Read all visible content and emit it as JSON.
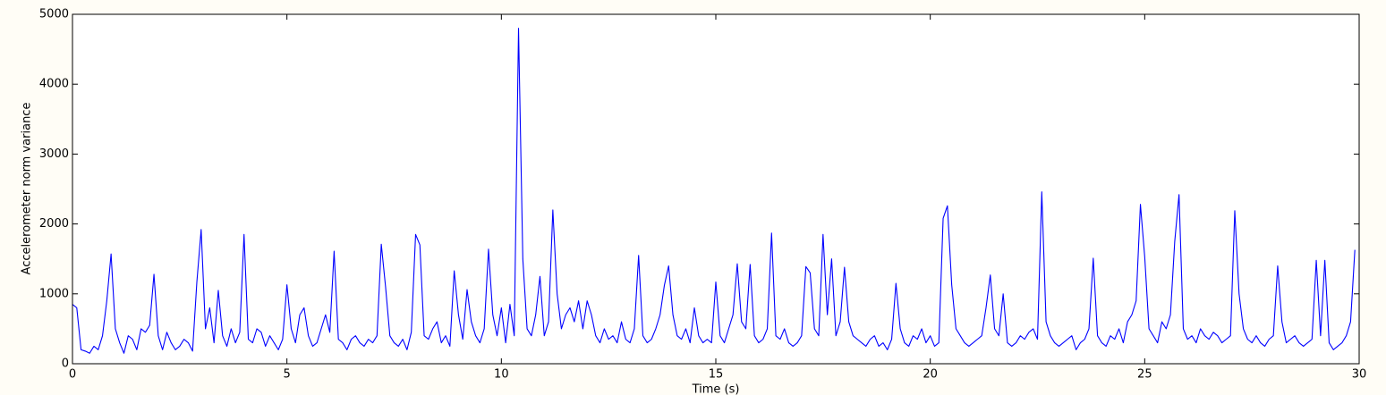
{
  "chart_data": {
    "type": "line",
    "xlabel": "Time (s)",
    "ylabel": "Accelerometer norm variance",
    "color": "#0000ff",
    "xlim": [
      0,
      30
    ],
    "xticks": [
      0,
      5,
      10,
      15,
      20,
      25,
      30
    ],
    "ylim": [
      0,
      5000
    ],
    "yticks": [
      0,
      1000,
      2000,
      3000,
      4000,
      5000
    ],
    "x": [
      0,
      0.1,
      0.2,
      0.3,
      0.4,
      0.5,
      0.6,
      0.7,
      0.8,
      0.9,
      1,
      1.1,
      1.2,
      1.3,
      1.4,
      1.5,
      1.6,
      1.7,
      1.8,
      1.9,
      2,
      2.1,
      2.2,
      2.3,
      2.4,
      2.5,
      2.6,
      2.7,
      2.8,
      2.9,
      3,
      3.1,
      3.2,
      3.3,
      3.4,
      3.5,
      3.6,
      3.7,
      3.8,
      3.9,
      4,
      4.1,
      4.2,
      4.3,
      4.4,
      4.5,
      4.6,
      4.7,
      4.8,
      4.9,
      5,
      5.1,
      5.2,
      5.3,
      5.4,
      5.5,
      5.6,
      5.7,
      5.8,
      5.9,
      6,
      6.1,
      6.2,
      6.3,
      6.4,
      6.5,
      6.6,
      6.7,
      6.8,
      6.9,
      7,
      7.1,
      7.2,
      7.3,
      7.4,
      7.5,
      7.6,
      7.7,
      7.8,
      7.9,
      8,
      8.1,
      8.2,
      8.3,
      8.4,
      8.5,
      8.6,
      8.7,
      8.8,
      8.9,
      9,
      9.1,
      9.2,
      9.3,
      9.4,
      9.5,
      9.6,
      9.7,
      9.8,
      9.9,
      10,
      10.1,
      10.2,
      10.3,
      10.4,
      10.5,
      10.6,
      10.7,
      10.8,
      10.9,
      11,
      11.1,
      11.2,
      11.3,
      11.4,
      11.5,
      11.6,
      11.7,
      11.8,
      11.9,
      12,
      12.1,
      12.2,
      12.3,
      12.4,
      12.5,
      12.6,
      12.7,
      12.8,
      12.9,
      13,
      13.1,
      13.2,
      13.3,
      13.4,
      13.5,
      13.6,
      13.7,
      13.8,
      13.9,
      14,
      14.1,
      14.2,
      14.3,
      14.4,
      14.5,
      14.6,
      14.7,
      14.8,
      14.9,
      15,
      15.1,
      15.2,
      15.3,
      15.4,
      15.5,
      15.6,
      15.7,
      15.8,
      15.9,
      16,
      16.1,
      16.2,
      16.3,
      16.4,
      16.5,
      16.6,
      16.7,
      16.8,
      16.9,
      17,
      17.1,
      17.2,
      17.3,
      17.4,
      17.5,
      17.6,
      17.7,
      17.8,
      17.9,
      18,
      18.1,
      18.2,
      18.3,
      18.4,
      18.5,
      18.6,
      18.7,
      18.8,
      18.9,
      19,
      19.1,
      19.2,
      19.3,
      19.4,
      19.5,
      19.6,
      19.7,
      19.8,
      19.9,
      20,
      20.1,
      20.2,
      20.3,
      20.4,
      20.5,
      20.6,
      20.7,
      20.8,
      20.9,
      21,
      21.1,
      21.2,
      21.3,
      21.4,
      21.5,
      21.6,
      21.7,
      21.8,
      21.9,
      22,
      22.1,
      22.2,
      22.3,
      22.4,
      22.5,
      22.6,
      22.7,
      22.8,
      22.9,
      23,
      23.1,
      23.2,
      23.3,
      23.4,
      23.5,
      23.6,
      23.7,
      23.8,
      23.9,
      24,
      24.1,
      24.2,
      24.3,
      24.4,
      24.5,
      24.6,
      24.7,
      24.8,
      24.9,
      25,
      25.1,
      25.2,
      25.3,
      25.4,
      25.5,
      25.6,
      25.7,
      25.8,
      25.9,
      26,
      26.1,
      26.2,
      26.3,
      26.4,
      26.5,
      26.6,
      26.7,
      26.8,
      26.9,
      27,
      27.1,
      27.2,
      27.3,
      27.4,
      27.5,
      27.6,
      27.7,
      27.8,
      27.9,
      28,
      28.1,
      28.2,
      28.3,
      28.4,
      28.5,
      28.6,
      28.7,
      28.8,
      28.9,
      29,
      29.1,
      29.2,
      29.3,
      29.4,
      29.5,
      29.6,
      29.7,
      29.8,
      29.9
    ],
    "values": [
      850,
      800,
      200,
      180,
      150,
      250,
      200,
      400,
      900,
      1570,
      500,
      300,
      150,
      400,
      350,
      200,
      500,
      450,
      550,
      1280,
      400,
      200,
      450,
      300,
      200,
      250,
      350,
      300,
      180,
      1170,
      1920,
      500,
      800,
      300,
      1050,
      400,
      250,
      500,
      300,
      450,
      1850,
      350,
      300,
      500,
      450,
      250,
      400,
      300,
      200,
      350,
      1130,
      500,
      300,
      700,
      800,
      400,
      250,
      300,
      500,
      700,
      450,
      1610,
      350,
      300,
      200,
      350,
      400,
      300,
      250,
      350,
      300,
      400,
      1710,
      1100,
      400,
      300,
      250,
      350,
      200,
      450,
      1850,
      1700,
      400,
      350,
      500,
      600,
      300,
      400,
      250,
      1330,
      700,
      350,
      1060,
      600,
      400,
      300,
      500,
      1640,
      700,
      400,
      800,
      300,
      850,
      400,
      4800,
      1500,
      500,
      400,
      700,
      1250,
      400,
      600,
      2200,
      1000,
      500,
      700,
      800,
      600,
      900,
      500,
      900,
      700,
      400,
      300,
      500,
      350,
      400,
      300,
      600,
      350,
      300,
      500,
      1550,
      400,
      300,
      350,
      500,
      700,
      1120,
      1400,
      700,
      400,
      350,
      500,
      300,
      800,
      400,
      300,
      350,
      300,
      1170,
      400,
      300,
      500,
      700,
      1430,
      600,
      500,
      1420,
      400,
      300,
      350,
      500,
      1870,
      400,
      350,
      500,
      300,
      250,
      300,
      400,
      1390,
      1300,
      500,
      400,
      1850,
      700,
      1500,
      400,
      600,
      1380,
      600,
      400,
      350,
      300,
      250,
      350,
      400,
      250,
      300,
      200,
      350,
      1150,
      500,
      300,
      250,
      400,
      350,
      500,
      300,
      400,
      250,
      300,
      2080,
      2260,
      1130,
      500,
      400,
      300,
      250,
      300,
      350,
      400,
      800,
      1270,
      500,
      400,
      1000,
      300,
      250,
      300,
      400,
      350,
      450,
      500,
      350,
      2460,
      600,
      400,
      300,
      250,
      300,
      350,
      400,
      200,
      300,
      350,
      500,
      1510,
      400,
      300,
      250,
      400,
      350,
      500,
      300,
      600,
      700,
      900,
      2280,
      1530,
      500,
      400,
      300,
      600,
      500,
      700,
      1750,
      2420,
      500,
      350,
      400,
      300,
      500,
      400,
      350,
      450,
      400,
      300,
      350,
      400,
      2190,
      1000,
      500,
      350,
      300,
      400,
      300,
      250,
      350,
      400,
      1400,
      600,
      300,
      350,
      400,
      300,
      250,
      300,
      350,
      1480,
      400,
      1480,
      300,
      200,
      250,
      300,
      400,
      600,
      1630
    ]
  }
}
